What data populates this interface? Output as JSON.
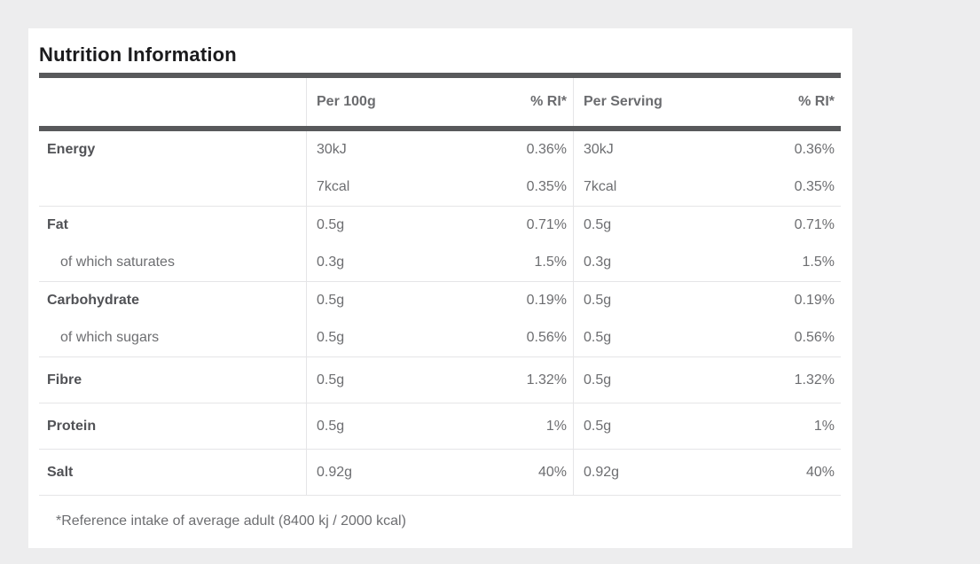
{
  "title": "Nutrition Information",
  "columns": {
    "nutrient": "",
    "per100g": "Per 100g",
    "ri100g": "% RI*",
    "perServing": "Per Serving",
    "riServing": "% RI*"
  },
  "groups": [
    {
      "name": "energy",
      "rows": [
        {
          "label": "Energy",
          "v1": "30kJ",
          "p1": "0.36%",
          "v2": "30kJ",
          "p2": "0.36%"
        },
        {
          "label": "",
          "v1": "7kcal",
          "p1": "0.35%",
          "v2": "7kcal",
          "p2": "0.35%"
        }
      ]
    },
    {
      "name": "fat",
      "rows": [
        {
          "label": "Fat",
          "v1": "0.5g",
          "p1": "0.71%",
          "v2": "0.5g",
          "p2": "0.71%"
        },
        {
          "label": "of which saturates",
          "v1": "0.3g",
          "p1": "1.5%",
          "v2": "0.3g",
          "p2": "1.5%"
        }
      ]
    },
    {
      "name": "carbohydrate",
      "rows": [
        {
          "label": "Carbohydrate",
          "v1": "0.5g",
          "p1": "0.19%",
          "v2": "0.5g",
          "p2": "0.19%"
        },
        {
          "label": "of which sugars",
          "v1": "0.5g",
          "p1": "0.56%",
          "v2": "0.5g",
          "p2": "0.56%"
        }
      ]
    },
    {
      "name": "fibre",
      "rows": [
        {
          "label": "Fibre",
          "v1": "0.5g",
          "p1": "1.32%",
          "v2": "0.5g",
          "p2": "1.32%"
        }
      ]
    },
    {
      "name": "protein",
      "rows": [
        {
          "label": "Protein",
          "v1": "0.5g",
          "p1": "1%",
          "v2": "0.5g",
          "p2": "1%"
        }
      ]
    },
    {
      "name": "salt",
      "rows": [
        {
          "label": "Salt",
          "v1": "0.92g",
          "p1": "40%",
          "v2": "0.92g",
          "p2": "40%"
        }
      ]
    }
  ],
  "footnote": "*Reference intake of average adult (8400 kj / 2000 kcal)",
  "colors": {
    "page_background": "#ededee",
    "card_background": "#ffffff",
    "rule": "#58595b",
    "title_text": "#1b1b1d",
    "header_text": "#6b6c6f",
    "label_text": "#515256",
    "value_text": "#6d6e71",
    "separator": "#e5e5e7"
  }
}
